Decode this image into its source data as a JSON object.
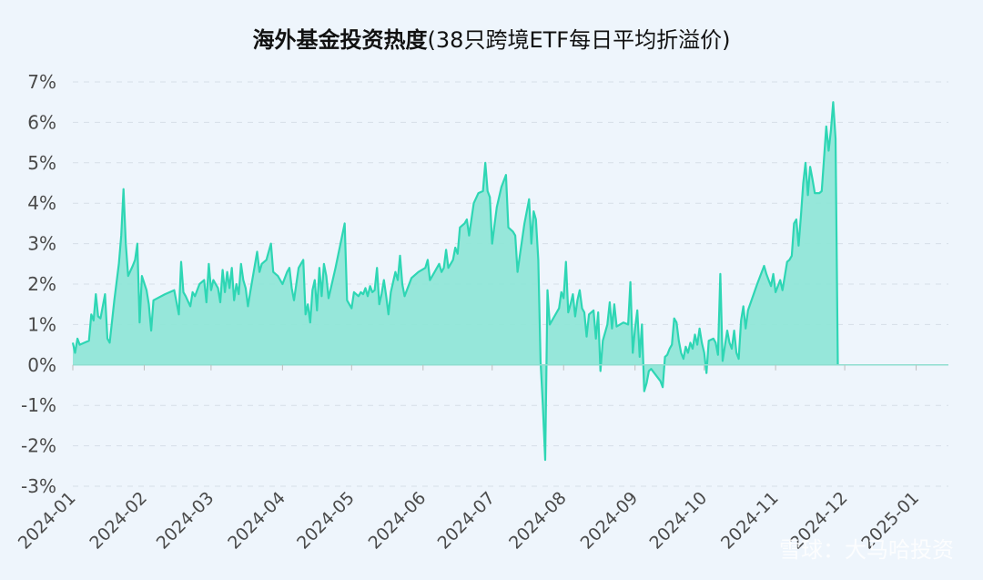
{
  "chart_data": {
    "type": "area",
    "title_bold": "海外基金投资热度",
    "title_rest": "(38只跨境ETF每日平均折溢价)",
    "y_ticks": [
      "7%",
      "6%",
      "5%",
      "4%",
      "3%",
      "2%",
      "1%",
      "0%",
      "-1%",
      "-2%",
      "-3%"
    ],
    "y_tick_values": [
      7,
      6,
      5,
      4,
      3,
      2,
      1,
      0,
      -1,
      -2,
      -3
    ],
    "ylim": [
      -3,
      7
    ],
    "x_start": "2024-01-01",
    "x_end": "2025-01-15",
    "x_ticks": [
      {
        "label": "2024-01",
        "date": "2024-01-01"
      },
      {
        "label": "2024-02",
        "date": "2024-02-01"
      },
      {
        "label": "2024-03",
        "date": "2024-03-01"
      },
      {
        "label": "2024-04",
        "date": "2024-04-01"
      },
      {
        "label": "2024-05",
        "date": "2024-05-01"
      },
      {
        "label": "2024-06",
        "date": "2024-06-01"
      },
      {
        "label": "2024-07",
        "date": "2024-07-01"
      },
      {
        "label": "2024-08",
        "date": "2024-08-01"
      },
      {
        "label": "2024-09",
        "date": "2024-09-01"
      },
      {
        "label": "2024-10",
        "date": "2024-10-01"
      },
      {
        "label": "2024-11",
        "date": "2024-11-01"
      },
      {
        "label": "2024-12",
        "date": "2024-12-01"
      },
      {
        "label": "2025-01",
        "date": "2025-01-01"
      }
    ],
    "grid": true,
    "line_color": "#2ed6b4",
    "fill_color": "#8ce6d6",
    "series": [
      {
        "points": [
          [
            "2024-01-01",
            0.55
          ],
          [
            "2024-01-02",
            0.3
          ],
          [
            "2024-01-03",
            0.65
          ],
          [
            "2024-01-04",
            0.5
          ],
          [
            "2024-01-06",
            0.55
          ],
          [
            "2024-01-08",
            0.6
          ],
          [
            "2024-01-09",
            1.25
          ],
          [
            "2024-01-10",
            1.1
          ],
          [
            "2024-01-11",
            1.75
          ],
          [
            "2024-01-12",
            1.2
          ],
          [
            "2024-01-13",
            1.15
          ],
          [
            "2024-01-15",
            1.75
          ],
          [
            "2024-01-16",
            0.65
          ],
          [
            "2024-01-17",
            0.55
          ],
          [
            "2024-01-19",
            1.6
          ],
          [
            "2024-01-21",
            2.5
          ],
          [
            "2024-01-22",
            3.2
          ],
          [
            "2024-01-23",
            4.35
          ],
          [
            "2024-01-24",
            3.0
          ],
          [
            "2024-01-25",
            2.2
          ],
          [
            "2024-01-27",
            2.45
          ],
          [
            "2024-01-28",
            2.6
          ],
          [
            "2024-01-29",
            3.0
          ],
          [
            "2024-01-30",
            1.05
          ],
          [
            "2024-01-31",
            2.2
          ],
          [
            "2024-02-02",
            1.85
          ],
          [
            "2024-02-03",
            1.5
          ],
          [
            "2024-02-04",
            0.85
          ],
          [
            "2024-02-05",
            1.6
          ],
          [
            "2024-02-10",
            1.75
          ],
          [
            "2024-02-14",
            1.85
          ],
          [
            "2024-02-16",
            1.25
          ],
          [
            "2024-02-17",
            2.55
          ],
          [
            "2024-02-18",
            1.8
          ],
          [
            "2024-02-19",
            1.7
          ],
          [
            "2024-02-21",
            1.45
          ],
          [
            "2024-02-22",
            1.8
          ],
          [
            "2024-02-23",
            1.7
          ],
          [
            "2024-02-25",
            2.0
          ],
          [
            "2024-02-27",
            2.1
          ],
          [
            "2024-02-28",
            1.55
          ],
          [
            "2024-02-29",
            2.5
          ],
          [
            "2024-03-01",
            1.85
          ],
          [
            "2024-03-02",
            2.1
          ],
          [
            "2024-03-04",
            1.9
          ],
          [
            "2024-03-05",
            1.55
          ],
          [
            "2024-03-06",
            2.35
          ],
          [
            "2024-03-07",
            1.8
          ],
          [
            "2024-03-08",
            2.3
          ],
          [
            "2024-03-09",
            1.9
          ],
          [
            "2024-03-10",
            2.4
          ],
          [
            "2024-03-11",
            1.6
          ],
          [
            "2024-03-12",
            2.0
          ],
          [
            "2024-03-13",
            1.75
          ],
          [
            "2024-03-14",
            2.5
          ],
          [
            "2024-03-15",
            2.1
          ],
          [
            "2024-03-16",
            1.9
          ],
          [
            "2024-03-17",
            1.45
          ],
          [
            "2024-03-18",
            1.8
          ],
          [
            "2024-03-21",
            2.8
          ],
          [
            "2024-03-22",
            2.3
          ],
          [
            "2024-03-23",
            2.5
          ],
          [
            "2024-03-25",
            2.6
          ],
          [
            "2024-03-27",
            3.0
          ],
          [
            "2024-03-28",
            2.3
          ],
          [
            "2024-03-30",
            2.2
          ],
          [
            "2024-04-01",
            2.0
          ],
          [
            "2024-04-03",
            2.3
          ],
          [
            "2024-04-04",
            2.4
          ],
          [
            "2024-04-05",
            1.9
          ],
          [
            "2024-04-06",
            1.6
          ],
          [
            "2024-04-08",
            2.4
          ],
          [
            "2024-04-10",
            2.6
          ],
          [
            "2024-04-11",
            1.25
          ],
          [
            "2024-04-12",
            1.5
          ],
          [
            "2024-04-13",
            1.05
          ],
          [
            "2024-04-14",
            1.85
          ],
          [
            "2024-04-15",
            2.1
          ],
          [
            "2024-04-16",
            1.35
          ],
          [
            "2024-04-17",
            2.4
          ],
          [
            "2024-04-18",
            1.7
          ],
          [
            "2024-04-19",
            2.5
          ],
          [
            "2024-04-20",
            2.2
          ],
          [
            "2024-04-21",
            1.65
          ],
          [
            "2024-04-24",
            2.4
          ],
          [
            "2024-04-28",
            3.5
          ],
          [
            "2024-04-29",
            1.6
          ],
          [
            "2024-05-01",
            1.4
          ],
          [
            "2024-05-02",
            1.8
          ],
          [
            "2024-05-04",
            1.7
          ],
          [
            "2024-05-05",
            1.8
          ],
          [
            "2024-05-06",
            1.75
          ],
          [
            "2024-05-07",
            1.9
          ],
          [
            "2024-05-08",
            1.7
          ],
          [
            "2024-05-09",
            1.95
          ],
          [
            "2024-05-10",
            1.8
          ],
          [
            "2024-05-11",
            1.85
          ],
          [
            "2024-05-12",
            2.4
          ],
          [
            "2024-05-13",
            1.5
          ],
          [
            "2024-05-14",
            1.75
          ],
          [
            "2024-05-15",
            2.1
          ],
          [
            "2024-05-16",
            1.7
          ],
          [
            "2024-05-17",
            1.25
          ],
          [
            "2024-05-18",
            1.8
          ],
          [
            "2024-05-20",
            2.3
          ],
          [
            "2024-05-21",
            2.1
          ],
          [
            "2024-05-22",
            2.7
          ],
          [
            "2024-05-23",
            2.0
          ],
          [
            "2024-05-24",
            1.7
          ],
          [
            "2024-05-27",
            2.15
          ],
          [
            "2024-05-30",
            2.3
          ],
          [
            "2024-06-02",
            2.4
          ],
          [
            "2024-06-03",
            2.6
          ],
          [
            "2024-06-04",
            2.1
          ],
          [
            "2024-06-06",
            2.3
          ],
          [
            "2024-06-08",
            2.5
          ],
          [
            "2024-06-09",
            2.3
          ],
          [
            "2024-06-10",
            2.4
          ],
          [
            "2024-06-11",
            2.85
          ],
          [
            "2024-06-12",
            2.4
          ],
          [
            "2024-06-14",
            2.6
          ],
          [
            "2024-06-15",
            2.9
          ],
          [
            "2024-06-16",
            2.75
          ],
          [
            "2024-06-17",
            3.4
          ],
          [
            "2024-06-19",
            3.5
          ],
          [
            "2024-06-20",
            3.6
          ],
          [
            "2024-06-21",
            3.2
          ],
          [
            "2024-06-23",
            4.0
          ],
          [
            "2024-06-25",
            4.25
          ],
          [
            "2024-06-27",
            4.3
          ],
          [
            "2024-06-28",
            5.0
          ],
          [
            "2024-06-29",
            4.3
          ],
          [
            "2024-06-30",
            4.15
          ],
          [
            "2024-07-01",
            3.0
          ],
          [
            "2024-07-03",
            3.9
          ],
          [
            "2024-07-05",
            4.4
          ],
          [
            "2024-07-07",
            4.7
          ],
          [
            "2024-07-08",
            3.4
          ],
          [
            "2024-07-10",
            3.3
          ],
          [
            "2024-07-11",
            3.2
          ],
          [
            "2024-07-12",
            2.3
          ],
          [
            "2024-07-13",
            2.7
          ],
          [
            "2024-07-15",
            3.5
          ],
          [
            "2024-07-17",
            4.1
          ],
          [
            "2024-07-18",
            3.0
          ],
          [
            "2024-07-19",
            3.8
          ],
          [
            "2024-07-20",
            3.6
          ],
          [
            "2024-07-21",
            2.6
          ],
          [
            "2024-07-22",
            0.1
          ],
          [
            "2024-07-23",
            -1.0
          ],
          [
            "2024-07-24",
            -2.35
          ],
          [
            "2024-07-25",
            1.85
          ],
          [
            "2024-07-26",
            1.0
          ],
          [
            "2024-07-28",
            1.2
          ],
          [
            "2024-07-30",
            1.4
          ],
          [
            "2024-07-31",
            1.8
          ],
          [
            "2024-08-01",
            1.65
          ],
          [
            "2024-08-02",
            2.55
          ],
          [
            "2024-08-03",
            1.3
          ],
          [
            "2024-08-04",
            1.5
          ],
          [
            "2024-08-05",
            1.75
          ],
          [
            "2024-08-06",
            1.2
          ],
          [
            "2024-08-07",
            1.6
          ],
          [
            "2024-08-08",
            1.85
          ],
          [
            "2024-08-09",
            1.4
          ],
          [
            "2024-08-10",
            1.3
          ],
          [
            "2024-08-11",
            0.7
          ],
          [
            "2024-08-12",
            1.25
          ],
          [
            "2024-08-14",
            1.35
          ],
          [
            "2024-08-15",
            0.65
          ],
          [
            "2024-08-16",
            1.3
          ],
          [
            "2024-08-17",
            -0.15
          ],
          [
            "2024-08-18",
            0.6
          ],
          [
            "2024-08-19",
            0.8
          ],
          [
            "2024-08-20",
            1.0
          ],
          [
            "2024-08-21",
            1.55
          ],
          [
            "2024-08-22",
            0.9
          ],
          [
            "2024-08-23",
            1.5
          ],
          [
            "2024-08-24",
            0.95
          ],
          [
            "2024-08-27",
            1.05
          ],
          [
            "2024-08-29",
            1.0
          ],
          [
            "2024-08-30",
            2.05
          ],
          [
            "2024-08-31",
            0.3
          ],
          [
            "2024-09-01",
            0.9
          ],
          [
            "2024-09-02",
            1.35
          ],
          [
            "2024-09-03",
            0.2
          ],
          [
            "2024-09-04",
            1.0
          ],
          [
            "2024-09-05",
            -0.65
          ],
          [
            "2024-09-06",
            -0.45
          ],
          [
            "2024-09-07",
            -0.15
          ],
          [
            "2024-09-08",
            -0.1
          ],
          [
            "2024-09-12",
            -0.4
          ],
          [
            "2024-09-13",
            -0.55
          ],
          [
            "2024-09-14",
            0.2
          ],
          [
            "2024-09-15",
            0.25
          ],
          [
            "2024-09-16",
            0.4
          ],
          [
            "2024-09-17",
            0.5
          ],
          [
            "2024-09-18",
            1.15
          ],
          [
            "2024-09-19",
            1.05
          ],
          [
            "2024-09-20",
            0.6
          ],
          [
            "2024-09-21",
            0.3
          ],
          [
            "2024-09-22",
            0.15
          ],
          [
            "2024-09-23",
            0.45
          ],
          [
            "2024-09-24",
            0.3
          ],
          [
            "2024-09-25",
            0.55
          ],
          [
            "2024-09-26",
            0.4
          ],
          [
            "2024-09-27",
            0.75
          ],
          [
            "2024-09-28",
            0.5
          ],
          [
            "2024-09-29",
            0.9
          ],
          [
            "2024-09-30",
            0.55
          ],
          [
            "2024-10-01",
            0.3
          ],
          [
            "2024-10-02",
            -0.2
          ],
          [
            "2024-10-03",
            0.6
          ],
          [
            "2024-10-05",
            0.65
          ],
          [
            "2024-10-06",
            0.55
          ],
          [
            "2024-10-07",
            0.25
          ],
          [
            "2024-10-08",
            2.25
          ],
          [
            "2024-10-09",
            0.1
          ],
          [
            "2024-10-11",
            0.85
          ],
          [
            "2024-10-12",
            0.55
          ],
          [
            "2024-10-13",
            0.4
          ],
          [
            "2024-10-14",
            0.85
          ],
          [
            "2024-10-15",
            0.3
          ],
          [
            "2024-10-16",
            0.15
          ],
          [
            "2024-10-17",
            1.1
          ],
          [
            "2024-10-18",
            1.45
          ],
          [
            "2024-10-19",
            0.9
          ],
          [
            "2024-10-20",
            1.35
          ],
          [
            "2024-10-24",
            2.0
          ],
          [
            "2024-10-27",
            2.45
          ],
          [
            "2024-10-28",
            2.25
          ],
          [
            "2024-10-29",
            2.1
          ],
          [
            "2024-10-30",
            1.95
          ],
          [
            "2024-10-31",
            2.25
          ],
          [
            "2024-11-01",
            1.8
          ],
          [
            "2024-11-03",
            2.1
          ],
          [
            "2024-11-04",
            1.85
          ],
          [
            "2024-11-06",
            2.55
          ],
          [
            "2024-11-07",
            2.6
          ],
          [
            "2024-11-08",
            2.7
          ],
          [
            "2024-11-09",
            3.5
          ],
          [
            "2024-11-10",
            3.6
          ],
          [
            "2024-11-11",
            2.95
          ],
          [
            "2024-11-12",
            3.7
          ],
          [
            "2024-11-13",
            4.5
          ],
          [
            "2024-11-14",
            5.0
          ],
          [
            "2024-11-15",
            4.2
          ],
          [
            "2024-11-16",
            4.9
          ],
          [
            "2024-11-17",
            4.6
          ],
          [
            "2024-11-18",
            4.25
          ],
          [
            "2024-11-20",
            4.25
          ],
          [
            "2024-11-21",
            4.3
          ],
          [
            "2024-11-22",
            5.1
          ],
          [
            "2024-11-23",
            5.9
          ],
          [
            "2024-11-24",
            5.3
          ],
          [
            "2024-11-25",
            5.8
          ],
          [
            "2024-11-26",
            6.5
          ],
          [
            "2024-11-27",
            5.6
          ],
          [
            "2024-11-28",
            0
          ]
        ]
      }
    ]
  },
  "watermark": "雪球：大马哈投资"
}
